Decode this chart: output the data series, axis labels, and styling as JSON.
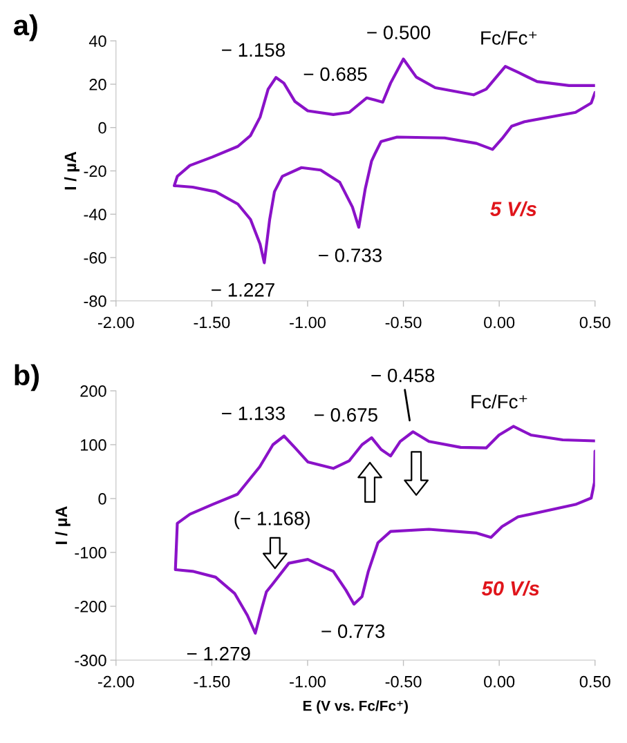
{
  "chart_data": [
    {
      "type": "line",
      "title": "a)",
      "ylabel": "I / µA",
      "xlim": [
        -2,
        0.5
      ],
      "xticks": [
        {
          "value": -2,
          "label": "-2.00"
        },
        {
          "value": -1.5,
          "label": "-1.50"
        },
        {
          "value": -1,
          "label": "-1.00"
        },
        {
          "value": -0.5,
          "label": "-0.50"
        },
        {
          "value": 0,
          "label": "0.00"
        },
        {
          "value": 0.5,
          "label": "0.50"
        }
      ],
      "ylim": [
        -80,
        40
      ],
      "yticks": [
        -80,
        -60,
        -40,
        -20,
        0,
        20,
        40
      ],
      "grid": false,
      "marker": "none",
      "line_style": "solid",
      "series": [
        {
          "color": "#8a12c8",
          "x": [
            0.5,
            0.48,
            0.398,
            0.132,
            0.065,
            0.015,
            -0.035,
            -0.119,
            -0.285,
            -0.533,
            -0.617,
            -0.649,
            -0.666,
            -0.699,
            -0.733,
            -0.766,
            -0.832,
            -0.932,
            -1.032,
            -1.132,
            -1.173,
            -1.198,
            -1.226,
            -1.248,
            -1.298,
            -1.364,
            -1.48,
            -1.6,
            -1.696,
            -1.68,
            -1.614,
            -1.497,
            -1.364,
            -1.298,
            -1.248,
            -1.206,
            -1.165,
            -1.124,
            -1.066,
            -0.999,
            -0.866,
            -0.783,
            -0.691,
            -0.649,
            -0.608,
            -0.567,
            -0.5,
            -0.433,
            -0.334,
            -0.134,
            -0.068,
            0.032,
            0.098,
            0.198,
            0.364,
            0.5
          ],
          "values": [
            16.2,
            11.3,
            7.0,
            2.7,
            0.6,
            -5.1,
            -10.1,
            -7.3,
            -4.8,
            -4.4,
            -6.5,
            -12.2,
            -15.4,
            -28.2,
            -46.0,
            -36.7,
            -25.3,
            -19.6,
            -18.5,
            -22.5,
            -29.6,
            -42.4,
            -62.4,
            -53.8,
            -42.4,
            -35.3,
            -29.6,
            -27.5,
            -26.8,
            -22.5,
            -17.5,
            -13.6,
            -8.7,
            -3.7,
            4.8,
            17.7,
            23.1,
            20.5,
            12.0,
            7.7,
            6.0,
            7.0,
            13.7,
            12.7,
            11.7,
            20.5,
            31.6,
            23.3,
            18.4,
            15.1,
            17.7,
            28.2,
            25.5,
            21.2,
            19.4,
            19.4
          ]
        }
      ],
      "annotations": [
        {
          "text": "− 1.158",
          "x": -1.158,
          "y": 23.1
        },
        {
          "text": "− 0.685",
          "x": -0.685,
          "y": 13.7
        },
        {
          "text": "− 0.500",
          "x": -0.5,
          "y": 31.6
        },
        {
          "text": "Fc/Fc⁺",
          "x": 0.03,
          "y": 28.2
        },
        {
          "text": "− 0.733",
          "x": -0.733,
          "y": -46.0
        },
        {
          "text": "− 1.227",
          "x": -1.227,
          "y": -62.4
        },
        "5 V/s"
      ]
    },
    {
      "type": "line",
      "title": "b)",
      "ylabel": "I / µA",
      "xlabel": "E (V vs. Fc/Fc⁺)",
      "xlim": [
        -2,
        0.5
      ],
      "xticks": [
        {
          "value": -2,
          "label": "-2.00"
        },
        {
          "value": -1.5,
          "label": "-1.50"
        },
        {
          "value": -1,
          "label": "-1.00"
        },
        {
          "value": -0.5,
          "label": "-0.50"
        },
        {
          "value": 0,
          "label": "0.00"
        },
        {
          "value": 0.5,
          "label": "0.50"
        }
      ],
      "ylim": [
        -300,
        200
      ],
      "yticks": [
        -300,
        -200,
        -100,
        0,
        100,
        200
      ],
      "grid": false,
      "marker": "none",
      "line_style": "solid",
      "series": [
        {
          "color": "#8a12c8",
          "x": [
            0.5,
            0.497,
            0.48,
            0.398,
            0.098,
            0.015,
            -0.043,
            -0.118,
            -0.367,
            -0.567,
            -0.633,
            -0.683,
            -0.716,
            -0.758,
            -0.8,
            -0.866,
            -0.999,
            -1.098,
            -1.181,
            -1.215,
            -1.24,
            -1.273,
            -1.314,
            -1.381,
            -1.48,
            -1.6,
            -1.69,
            -1.68,
            -1.614,
            -1.497,
            -1.366,
            -1.25,
            -1.181,
            -1.123,
            -1.065,
            -0.999,
            -0.866,
            -0.783,
            -0.716,
            -0.666,
            -0.616,
            -0.567,
            -0.517,
            -0.45,
            -0.367,
            -0.201,
            -0.068,
            -0.001,
            0.074,
            0.165,
            0.331,
            0.5
          ],
          "values": [
            88,
            30,
            1,
            -11,
            -34,
            -52,
            -72,
            -64,
            -57,
            -61,
            -82,
            -135,
            -182,
            -196,
            -170,
            -135,
            -113,
            -120,
            -158,
            -173,
            -205,
            -250,
            -217,
            -176,
            -146,
            -135,
            -132,
            -46,
            -29,
            -11,
            8,
            59,
            100,
            116,
            94,
            68,
            56,
            70,
            100,
            113,
            91,
            79,
            106,
            124,
            106,
            95,
            94,
            118,
            134,
            118,
            109,
            107
          ]
        }
      ],
      "annotations": [
        {
          "text": "− 1.133",
          "x": -1.133,
          "y": 116
        },
        {
          "text": "− 0.675",
          "x": -0.675,
          "y": 113
        },
        {
          "text": "− 0.458",
          "x": -0.458,
          "y": 124
        },
        {
          "text": "Fc/Fc⁺",
          "x": 0.06,
          "y": 134
        },
        "(− 1.168)",
        {
          "text": "− 0.773",
          "x": -0.773,
          "y": -196
        },
        {
          "text": "− 1.279",
          "x": -1.279,
          "y": -250
        },
        "50 V/s"
      ]
    }
  ]
}
